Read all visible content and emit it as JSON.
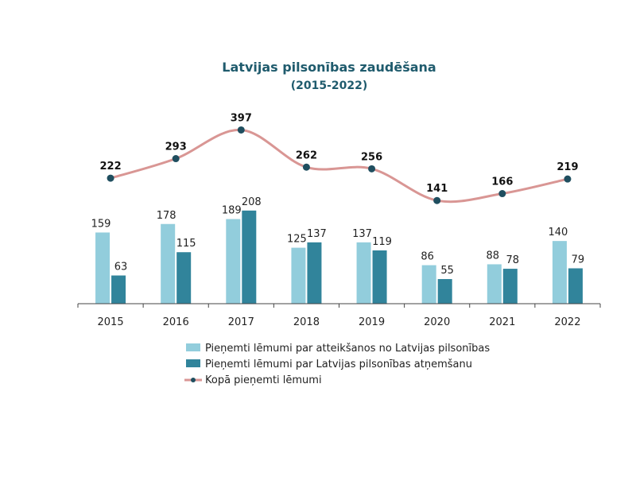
{
  "chart_data": {
    "type": "bar",
    "title": "Latvijas pilsonības zaudēšana",
    "subtitle": "(2015-2022)",
    "categories": [
      "2015",
      "2016",
      "2017",
      "2018",
      "2019",
      "2020",
      "2021",
      "2022"
    ],
    "series": [
      {
        "name": "Pieņemti lēmumi par atteikšanos no Latvijas pilsonības",
        "type": "bar",
        "color": "#92cddc",
        "values": [
          159,
          178,
          189,
          125,
          137,
          86,
          88,
          140
        ]
      },
      {
        "name": "Pieņemti lēmumi par Latvijas pilsonības atņemšanu",
        "type": "bar",
        "color": "#31849b",
        "values": [
          63,
          115,
          208,
          137,
          119,
          55,
          78,
          79
        ]
      },
      {
        "name": "Kopā pieņemti lēmumi",
        "type": "line",
        "color": "#d99694",
        "marker_color": "#1f4e5f",
        "values": [
          222,
          293,
          397,
          262,
          256,
          141,
          166,
          219
        ]
      }
    ],
    "grid": false,
    "legend_position": "bottom"
  }
}
